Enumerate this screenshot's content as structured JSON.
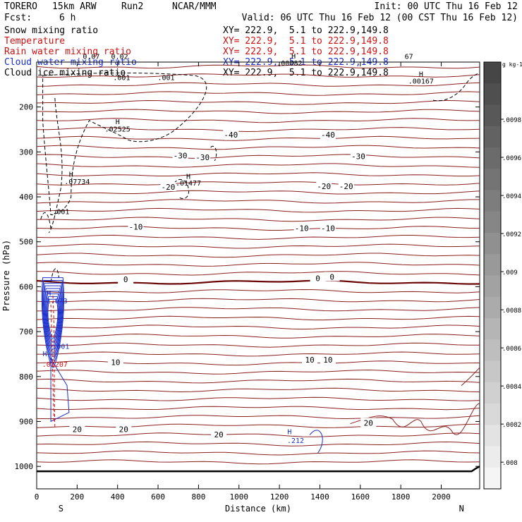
{
  "header": {
    "model": "TORERO",
    "resolution": "15km ARW",
    "run": "Run2",
    "org": "NCAR/MMM",
    "init": "Init: 00 UTC Thu 16 Feb 12",
    "fcst_label": "Fcst:",
    "fcst_value": "6 h",
    "valid": "Valid: 06 UTC Thu 16 Feb 12 (00 CST Thu 16 Feb 12)"
  },
  "fields": [
    {
      "name": "Snow mixing ratio",
      "xy": "XY= 222.9,  5.1 to 222.9,149.8",
      "color": "#000000"
    },
    {
      "name": "Temperature",
      "xy": "XY= 222.9,  5.1 to 222.9,149.8",
      "color": "#cc1111"
    },
    {
      "name": "Rain water mixing ratio",
      "xy": "XY= 222.9,  5.1 to 222.9,149.8",
      "color": "#cc1111"
    },
    {
      "name": "Cloud water mixing ratio",
      "xy": "XY= 222.9,  5.1 to 222.9,149.8",
      "color": "#1a2fcc"
    },
    {
      "name": "Cloud ice mixing ratio",
      "xy": "XY= 222.9,  5.1 to 222.9,149.8",
      "color": "#000000"
    }
  ],
  "chart_data": {
    "type": "contour",
    "xlabel": "Distance (km)",
    "ylabel": "Pressure (hPa)",
    "xlim": [
      0,
      2190
    ],
    "ylim": [
      1050,
      100
    ],
    "x_ticks": [
      0,
      200,
      400,
      600,
      800,
      1000,
      1200,
      1400,
      1600,
      1800,
      2000
    ],
    "y_ticks": [
      200,
      300,
      400,
      500,
      600,
      700,
      800,
      900,
      1000
    ],
    "x_end_labels": [
      "S",
      "N"
    ],
    "temperature_contour_levels": [
      -40,
      -30,
      -20,
      -10,
      0,
      10,
      20
    ],
    "temperature_labels": [
      {
        "text": "-40",
        "x": 960,
        "p": 262
      },
      {
        "text": "-40",
        "x": 1440,
        "p": 262
      },
      {
        "text": "-30",
        "x": 710,
        "p": 308
      },
      {
        "text": "-30",
        "x": 820,
        "p": 312
      },
      {
        "text": "-30",
        "x": 1590,
        "p": 310
      },
      {
        "text": "-20",
        "x": 650,
        "p": 378
      },
      {
        "text": "-20",
        "x": 1420,
        "p": 376
      },
      {
        "text": "-20",
        "x": 1530,
        "p": 376
      },
      {
        "text": "-10",
        "x": 490,
        "p": 467
      },
      {
        "text": "-10",
        "x": 1310,
        "p": 470
      },
      {
        "text": "-10",
        "x": 1440,
        "p": 470
      },
      {
        "text": "0",
        "x": 440,
        "p": 584
      },
      {
        "text": "0",
        "x": 1390,
        "p": 581
      },
      {
        "text": "0",
        "x": 1460,
        "p": 578
      },
      {
        "text": "10",
        "x": 390,
        "p": 768
      },
      {
        "text": "10",
        "x": 1350,
        "p": 763
      },
      {
        "text": "10",
        "x": 1440,
        "p": 763
      },
      {
        "text": "20",
        "x": 200,
        "p": 917
      },
      {
        "text": "20",
        "x": 430,
        "p": 917
      },
      {
        "text": "20",
        "x": 900,
        "p": 929
      },
      {
        "text": "20",
        "x": 1640,
        "p": 903
      }
    ],
    "max_labels": [
      {
        "field": "snow",
        "text": ".02525",
        "x": 400,
        "p": 255
      },
      {
        "field": "snow",
        "text": ".07734",
        "x": 200,
        "p": 372
      },
      {
        "field": "snow",
        "text": ".001",
        "x": 420,
        "p": 140
      },
      {
        "field": "snow",
        "text": ".001",
        "x": 640,
        "p": 140
      },
      {
        "field": "snow",
        "text": ".001",
        "x": 120,
        "p": 438
      },
      {
        "field": "ice",
        "text": ".01477",
        "x": 750,
        "p": 375
      },
      {
        "field": "ice",
        "text": ".00167",
        "x": 1900,
        "p": 148
      },
      {
        "field": "ice",
        "text": ".00082",
        "x": 1250,
        "p": 108
      },
      {
        "field": "ice",
        "text": "0.07",
        "x": 270,
        "p": 93
      },
      {
        "field": "ice",
        "text": "0.02",
        "x": 410,
        "p": 93
      },
      {
        "field": "ice",
        "text": "67",
        "x": 1840,
        "p": 93
      },
      {
        "field": "cloud_water",
        "text": "1.073",
        "x": 100,
        "p": 637
      },
      {
        "field": "cloud_water",
        "text": ".001",
        "x": 120,
        "p": 738
      },
      {
        "field": "cloud_water",
        "text": ".212",
        "x": 1280,
        "p": 948
      },
      {
        "field": "rain",
        "text": ".01207",
        "x": 90,
        "p": 778
      }
    ],
    "colorbar": {
      "label": "g kg-1",
      "ticks": [
        ".0098",
        ".0096",
        ".0094",
        ".0092",
        ".009",
        ".0088",
        ".0086",
        ".0084",
        ".0082",
        ".008"
      ]
    }
  }
}
